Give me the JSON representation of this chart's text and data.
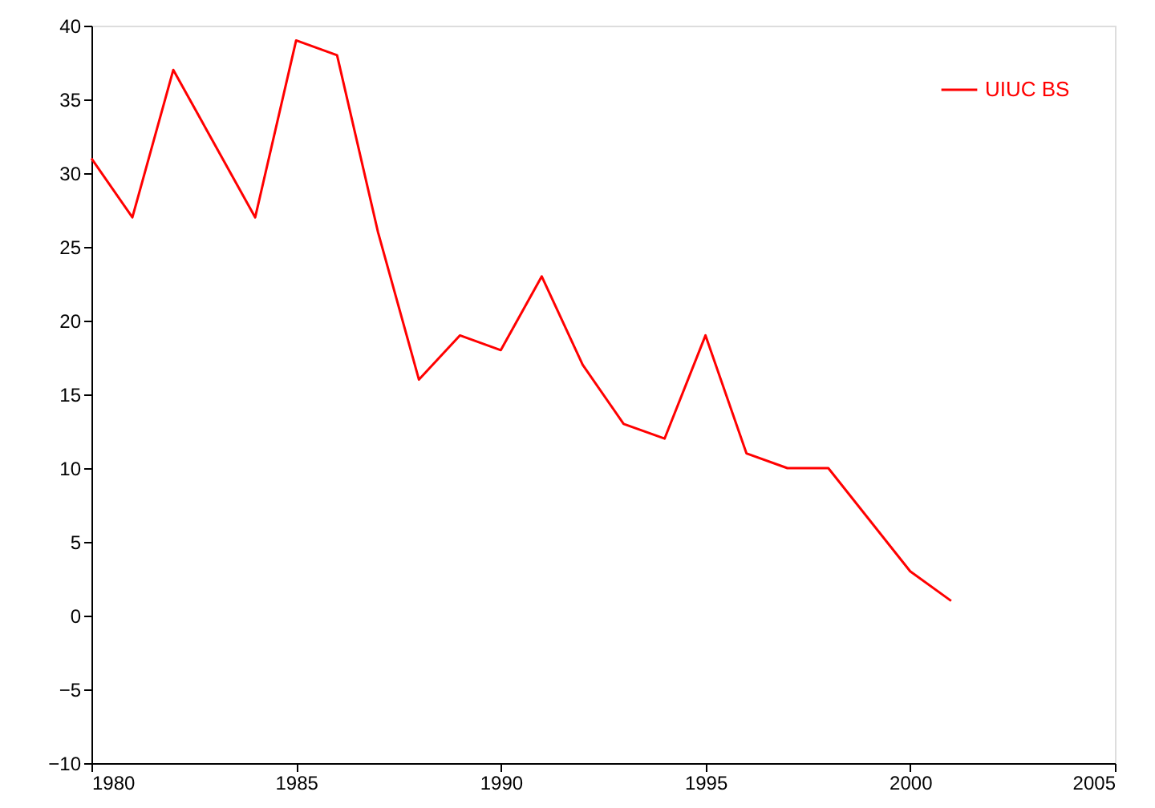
{
  "chart_data": {
    "type": "line",
    "x": [
      1980,
      1981,
      1982,
      1984,
      1985,
      1986,
      1987,
      1988,
      1989,
      1990,
      1991,
      1992,
      1993,
      1994,
      1995,
      1996,
      1997,
      1998,
      2000,
      2001
    ],
    "series": [
      {
        "name": "UIUC BS",
        "color": "#ff0000",
        "values": [
          31,
          27,
          37,
          27,
          39,
          38,
          26,
          16,
          19,
          18,
          23,
          17,
          13,
          12,
          19,
          11,
          10,
          10,
          3,
          1
        ]
      }
    ],
    "xlim": [
      1980,
      2005
    ],
    "xticks": [
      1980,
      1985,
      1990,
      1995,
      2000,
      2005
    ],
    "ylim": [
      -10,
      40
    ],
    "yticks": [
      -10,
      -5,
      0,
      5,
      10,
      15,
      20,
      25,
      30,
      35,
      40
    ],
    "grid": false,
    "legend": "top right",
    "marker": "none",
    "line_style": "solid"
  }
}
